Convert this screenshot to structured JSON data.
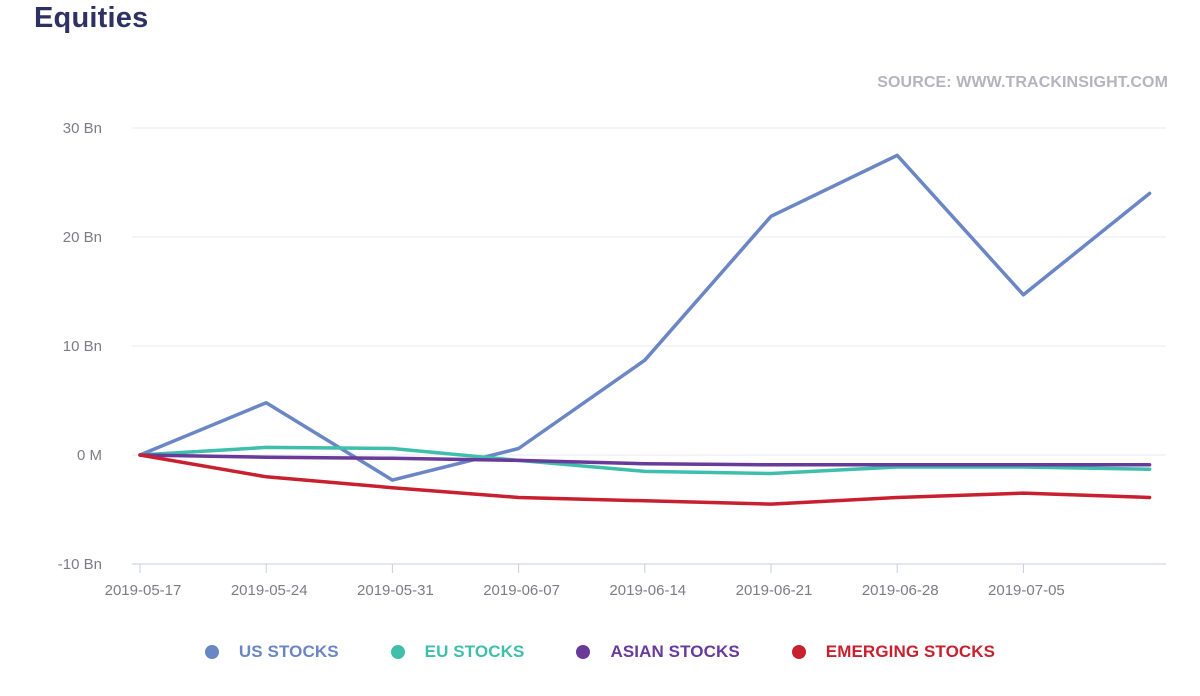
{
  "header": {
    "title": "Equities",
    "source": "SOURCE: WWW.TRACKINSIGHT.COM"
  },
  "chart_data": {
    "type": "line",
    "title": "Equities",
    "xlabel": "",
    "ylabel": "",
    "x": [
      "2019-05-17",
      "2019-05-24",
      "2019-05-31",
      "2019-06-07",
      "2019-06-14",
      "2019-06-21",
      "2019-06-28",
      "2019-07-05",
      "2019-07-12"
    ],
    "x_tick_labels": [
      "2019-05-17",
      "2019-05-24",
      "2019-05-31",
      "2019-06-07",
      "2019-06-14",
      "2019-06-21",
      "2019-06-28",
      "2019-07-05"
    ],
    "y_ticks": [
      -10,
      0,
      10,
      20,
      30
    ],
    "y_tick_labels": [
      "-10 Bn",
      "0 M",
      "10 Bn",
      "20 Bn",
      "30 Bn"
    ],
    "ylim": [
      -10,
      30
    ],
    "units": "Bn",
    "grid": true,
    "legend_position": "bottom",
    "series": [
      {
        "name": "US STOCKS",
        "color": "#6a86c4",
        "values": [
          0,
          4.8,
          -2.3,
          0.6,
          8.7,
          21.9,
          27.5,
          14.7,
          24.0
        ]
      },
      {
        "name": "EU STOCKS",
        "color": "#3fbfab",
        "values": [
          0,
          0.7,
          0.6,
          -0.5,
          -1.5,
          -1.7,
          -1.1,
          -1.1,
          -1.3
        ]
      },
      {
        "name": "ASIAN STOCKS",
        "color": "#6a3a9a",
        "values": [
          0,
          -0.2,
          -0.3,
          -0.5,
          -0.8,
          -0.9,
          -0.9,
          -0.9,
          -0.9
        ]
      },
      {
        "name": "EMERGING STOCKS",
        "color": "#c8202e",
        "values": [
          0,
          -2.0,
          -3.0,
          -3.9,
          -4.2,
          -4.5,
          -3.9,
          -3.5,
          -3.9
        ]
      }
    ]
  }
}
